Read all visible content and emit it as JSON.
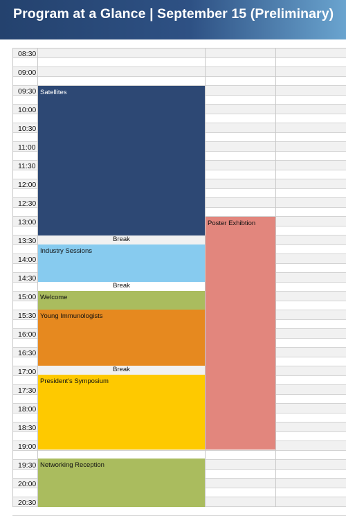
{
  "header": {
    "title": "Program at a Glance | September 15 (Preliminary)"
  },
  "times": [
    "08:30",
    "09:00",
    "09:30",
    "10:00",
    "10:30",
    "11:00",
    "11:30",
    "12:00",
    "12:30",
    "13:00",
    "13:30",
    "14:00",
    "14:30",
    "15:00",
    "15:30",
    "16:00",
    "16:30",
    "17:00",
    "17:30",
    "18:00",
    "18:30",
    "19:00",
    "19:30",
    "20:00",
    "20:30"
  ],
  "sessions": {
    "satellites": {
      "label": "Satellites",
      "color": "#2d4874"
    },
    "industry": {
      "label": "Industry Sessions",
      "color": "#87cbef"
    },
    "welcome": {
      "label": "Welcome",
      "color": "#aabc5e"
    },
    "young": {
      "label": "Young Immunologists",
      "color": "#e6891f"
    },
    "president": {
      "label": "President's Symposium",
      "color": "#fec900"
    },
    "networking": {
      "label": "Networking Reception",
      "color": "#aabc5e"
    },
    "poster": {
      "label": "Poster Exhibtion",
      "color": "#e2867d"
    }
  },
  "breaks": [
    "Break",
    "Break",
    "Break"
  ]
}
